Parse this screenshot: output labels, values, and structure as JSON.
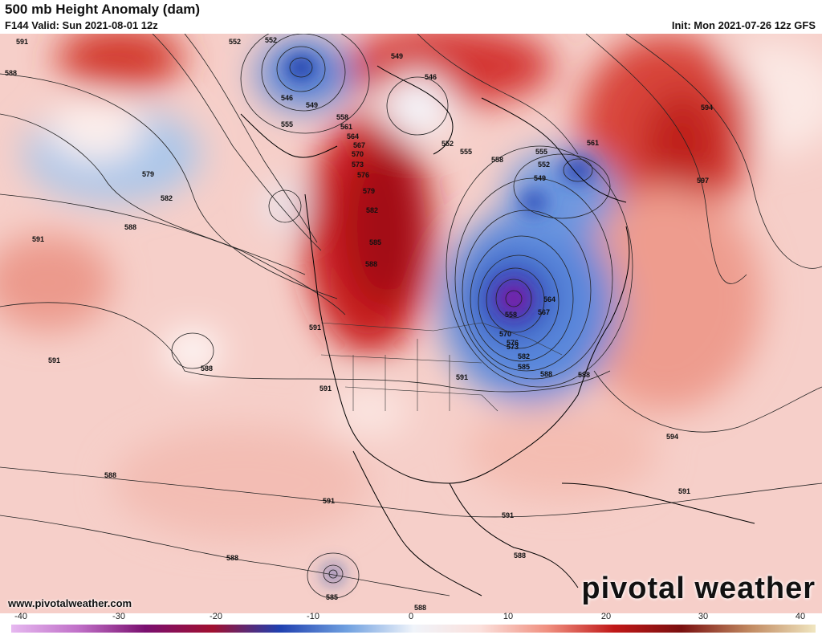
{
  "header": {
    "title": "500 mb Height Anomaly (dam)",
    "valid": "F144 Valid: Sun 2021-08-01 12z",
    "init": "Init: Mon 2021-07-26 12z GFS"
  },
  "footer": {
    "website": "www.pivotalweather.com",
    "brand": "pivotal weather"
  },
  "colorbar": {
    "ticks": [
      "-40",
      "-30",
      "-20",
      "-10",
      "0",
      "10",
      "20",
      "30",
      "40"
    ],
    "colors": [
      "#e6b8f0",
      "#c070c8",
      "#7a1070",
      "#a01030",
      "#2040b0",
      "#6fa0e0",
      "#f0f4fa",
      "#fbe0dc",
      "#f09080",
      "#c01818",
      "#7a1010",
      "#c08860",
      "#f0e6c0"
    ]
  },
  "contour_labels": [
    {
      "text": "552"
    },
    {
      "text": "552"
    },
    {
      "text": "546"
    },
    {
      "text": "549"
    },
    {
      "text": "555"
    },
    {
      "text": "549"
    },
    {
      "text": "546"
    },
    {
      "text": "552"
    },
    {
      "text": "555"
    },
    {
      "text": "558"
    },
    {
      "text": "558"
    },
    {
      "text": "561"
    },
    {
      "text": "564"
    },
    {
      "text": "567"
    },
    {
      "text": "570"
    },
    {
      "text": "573"
    },
    {
      "text": "576"
    },
    {
      "text": "579"
    },
    {
      "text": "582"
    },
    {
      "text": "585"
    },
    {
      "text": "588"
    },
    {
      "text": "588"
    },
    {
      "text": "591"
    },
    {
      "text": "579"
    },
    {
      "text": "582"
    },
    {
      "text": "588"
    },
    {
      "text": "591"
    },
    {
      "text": "591"
    },
    {
      "text": "588"
    },
    {
      "text": "591"
    },
    {
      "text": "591"
    },
    {
      "text": "591"
    },
    {
      "text": "588"
    },
    {
      "text": "561"
    },
    {
      "text": "555"
    },
    {
      "text": "552"
    },
    {
      "text": "549"
    },
    {
      "text": "594"
    },
    {
      "text": "597"
    },
    {
      "text": "564"
    },
    {
      "text": "567"
    },
    {
      "text": "558"
    },
    {
      "text": "570"
    },
    {
      "text": "573"
    },
    {
      "text": "576"
    },
    {
      "text": "582"
    },
    {
      "text": "585"
    },
    {
      "text": "588"
    },
    {
      "text": "594"
    },
    {
      "text": "591"
    },
    {
      "text": "588"
    },
    {
      "text": "591"
    },
    {
      "text": "591"
    },
    {
      "text": "588"
    },
    {
      "text": "588"
    },
    {
      "text": "585"
    },
    {
      "text": "588"
    }
  ]
}
